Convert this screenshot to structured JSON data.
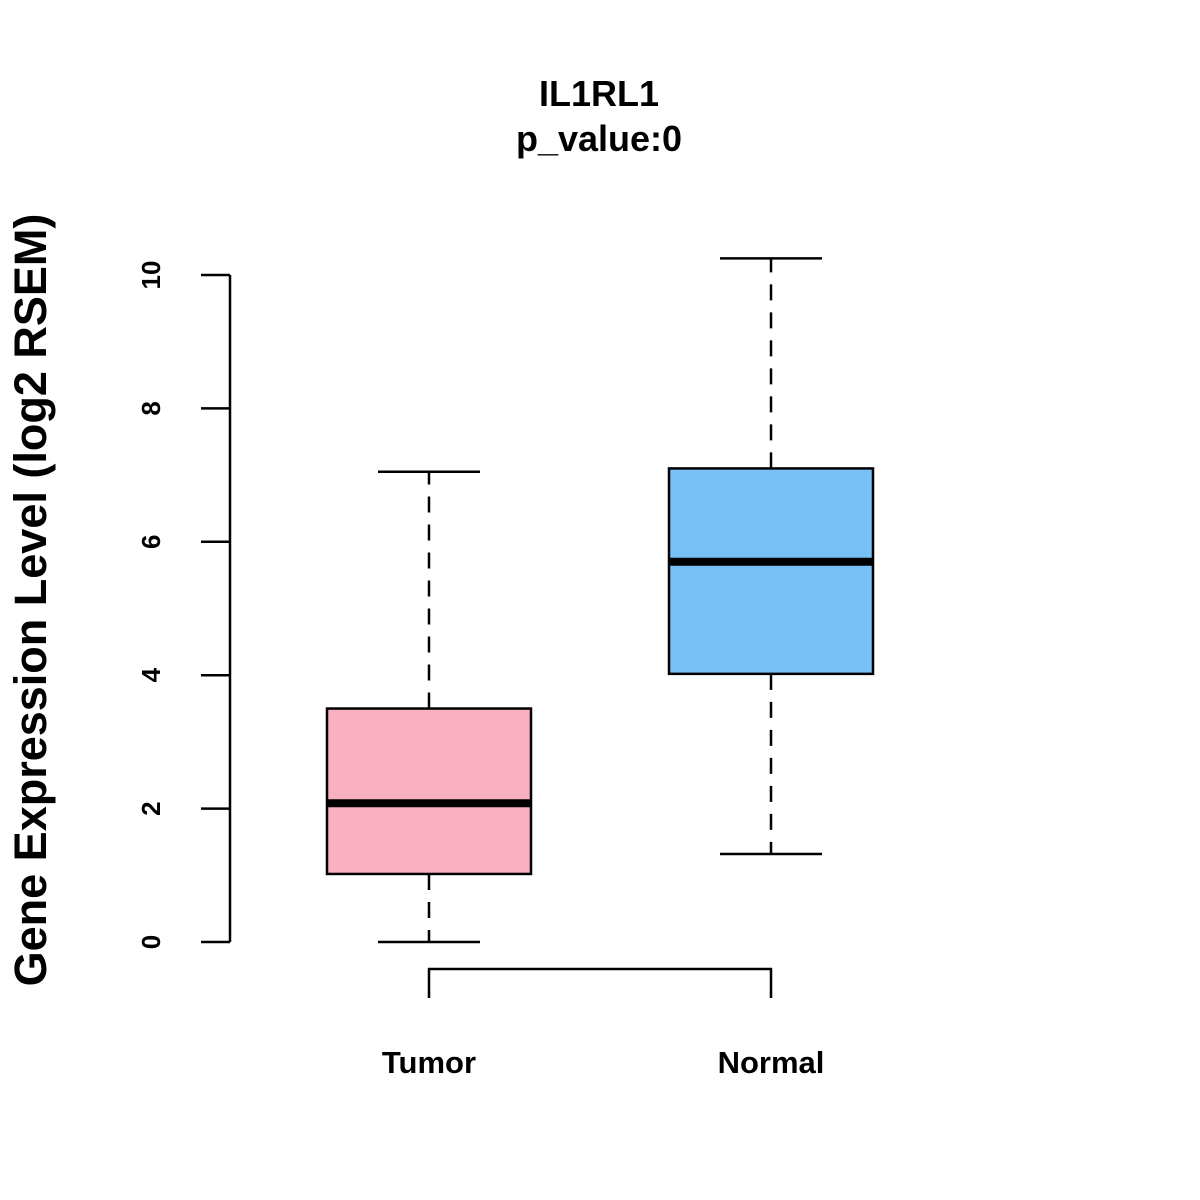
{
  "chart_data": {
    "type": "boxplot",
    "title": "IL1RL1",
    "subtitle": "p_value:0",
    "xlabel": "",
    "ylabel": "Gene Expression Level (log2 RSEM)",
    "ylim": [
      0,
      10
    ],
    "yticks": [
      0,
      2,
      4,
      6,
      8,
      10
    ],
    "grid": false,
    "categories": [
      "Tumor",
      "Normal"
    ],
    "boxes": [
      {
        "name": "Tumor",
        "color": "#FBB0C1",
        "whisker_low": 0.0,
        "q1": 1.02,
        "median": 2.08,
        "q3": 3.5,
        "whisker_high": 7.05
      },
      {
        "name": "Normal",
        "color": "#77C0F8",
        "whisker_low": 1.32,
        "q1": 4.02,
        "median": 5.7,
        "q3": 7.1,
        "whisker_high": 10.25
      }
    ],
    "comparison_bracket": [
      "Tumor",
      "Normal"
    ]
  }
}
